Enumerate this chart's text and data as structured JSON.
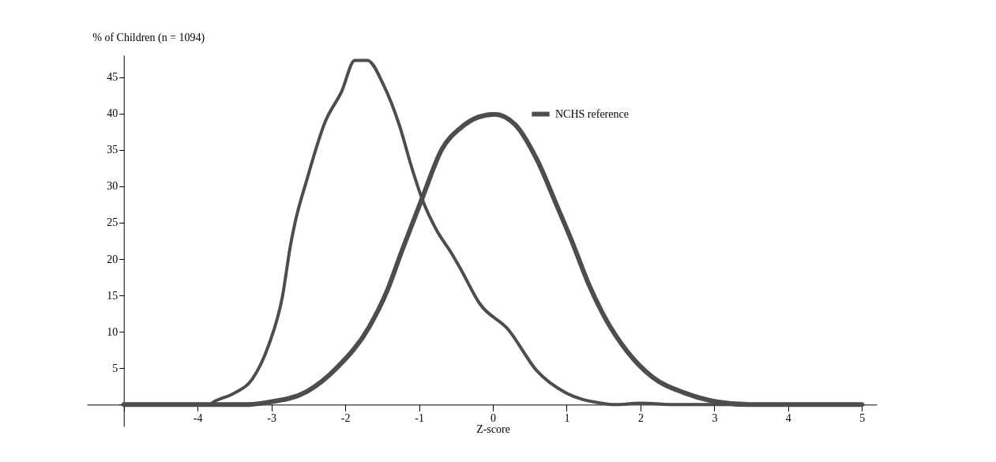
{
  "chart_data": {
    "type": "line",
    "xlabel": "Z-score",
    "ylabel": "% of Children (n = 1094)",
    "xlim": [
      -5.5,
      5.2
    ],
    "ylim": [
      -3,
      48
    ],
    "xticks": [
      {
        "value": -5,
        "label": null
      },
      -4,
      -3,
      -2,
      -1,
      0,
      1,
      2,
      3,
      4,
      5
    ],
    "yticks": [
      {
        "value": 0,
        "label": null
      },
      5,
      10,
      15,
      20,
      25,
      30,
      35,
      40,
      45
    ],
    "grid": false,
    "legend": "top right",
    "marker": "none",
    "line_style": "solid",
    "series": [
      {
        "color": "#4d4d4d",
        "x": [
          -5,
          -4.5,
          -4,
          -3.85,
          -3.76,
          -3.5,
          -3.26,
          -3.04,
          -2.85,
          -2.74,
          -2.68,
          -2.52,
          -2.27,
          -2.05,
          -1.87,
          -1.7,
          -1.48,
          -1.27,
          -1.1,
          -0.96,
          -0.77,
          -0.56,
          -0.44,
          -0.18,
          0.21,
          0.6,
          0.99,
          1.47,
          1.64,
          2,
          2.5,
          3,
          4,
          5
        ],
        "values": [
          0,
          0,
          0,
          0,
          0.5,
          1.6,
          3.5,
          8.1,
          14.9,
          22,
          25,
          30.9,
          38.9,
          43,
          47.3,
          47.3,
          43.9,
          38.5,
          32.6,
          28.3,
          24.1,
          20.8,
          18.7,
          13.9,
          10.3,
          4.6,
          1.6,
          0.2,
          0,
          0.2,
          0,
          0,
          0,
          0
        ]
      },
      {
        "name": "NCHS reference",
        "color": "#4d4d4d",
        "x": [
          -5,
          -4,
          -3.35,
          -3.06,
          -2.52,
          -2.1,
          -1.68,
          -1.43,
          -1.23,
          -0.96,
          -0.69,
          -0.44,
          -0.2,
          0.02,
          0.3,
          0.6,
          0.86,
          1.08,
          1.3,
          1.51,
          1.82,
          2.16,
          2.6,
          3.03,
          3.5,
          4,
          5
        ],
        "values": [
          0,
          0,
          0,
          0.3,
          1.8,
          5.2,
          10.6,
          15.7,
          21.2,
          28.3,
          35.1,
          38,
          39.5,
          39.9,
          38.5,
          33.6,
          27.5,
          22.2,
          16.5,
          12.1,
          7.3,
          3.8,
          1.6,
          0.4,
          0,
          0,
          0
        ]
      }
    ]
  }
}
